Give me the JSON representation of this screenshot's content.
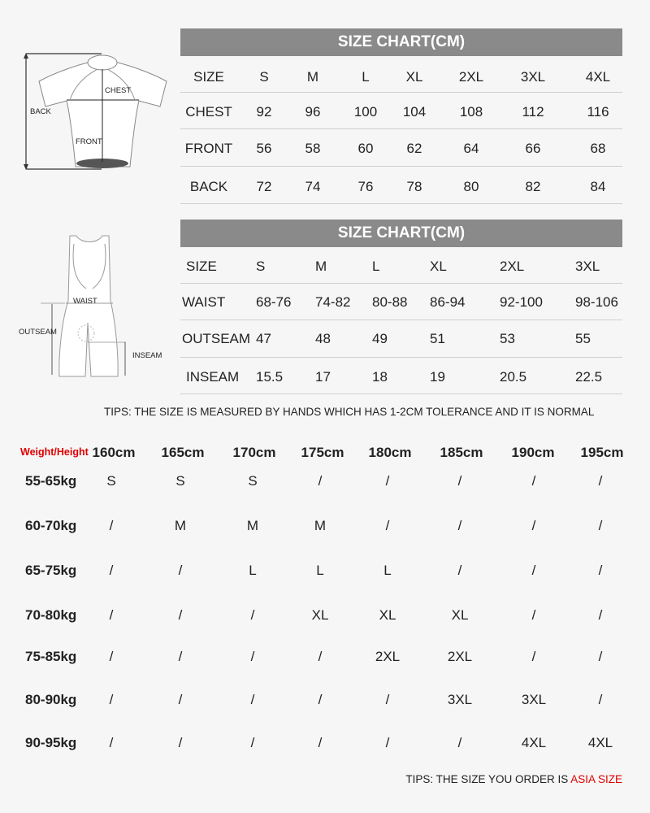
{
  "jersey_diagram": {
    "back": "BACK",
    "chest": "CHEST",
    "front": "FRONT"
  },
  "bib_diagram": {
    "waist": "WAIST",
    "outseam": "OUTSEAM",
    "inseam": "INSEAM"
  },
  "jersey_table": {
    "title": "SIZE CHART(CM)",
    "rows": [
      [
        "SIZE",
        "S",
        "M",
        "L",
        "XL",
        "2XL",
        "3XL",
        "4XL"
      ],
      [
        "CHEST",
        "92",
        "96",
        "100",
        "104",
        "108",
        "112",
        "116"
      ],
      [
        "FRONT",
        "56",
        "58",
        "60",
        "62",
        "64",
        "66",
        "68"
      ],
      [
        "BACK",
        "72",
        "74",
        "76",
        "78",
        "80",
        "82",
        "84"
      ]
    ]
  },
  "bib_table": {
    "title": "SIZE CHART(CM)",
    "rows": [
      [
        "SIZE",
        "S",
        "M",
        "L",
        "XL",
        "2XL",
        "3XL"
      ],
      [
        "WAIST",
        "68-76",
        "74-82",
        "80-88",
        "86-94",
        "92-100",
        "98-106"
      ],
      [
        "OUTSEAM",
        "47",
        "48",
        "49",
        "51",
        "53",
        "55"
      ],
      [
        "INSEAM",
        "15.5",
        "17",
        "18",
        "19",
        "20.5",
        "22.5"
      ]
    ]
  },
  "tips_tolerance": "TIPS: THE SIZE IS MEASURED BY HANDS WHICH HAS 1-2CM TOLERANCE AND IT IS NORMAL",
  "fit_table": {
    "corner_label": "Weight/Height",
    "heights": [
      "160cm",
      "165cm",
      "170cm",
      "175cm",
      "180cm",
      "185cm",
      "190cm",
      "195cm"
    ],
    "rows": [
      {
        "weight": "55-65kg",
        "sizes": [
          "S",
          "S",
          "S",
          "/",
          "/",
          "/",
          "/",
          "/"
        ]
      },
      {
        "weight": "60-70kg",
        "sizes": [
          "/",
          "M",
          "M",
          "M",
          "/",
          "/",
          "/",
          "/"
        ]
      },
      {
        "weight": "65-75kg",
        "sizes": [
          "/",
          "/",
          "L",
          "L",
          "L",
          "/",
          "/",
          "/"
        ]
      },
      {
        "weight": "70-80kg",
        "sizes": [
          "/",
          "/",
          "/",
          "XL",
          "XL",
          "XL",
          "/",
          "/"
        ]
      },
      {
        "weight": "75-85kg",
        "sizes": [
          "/",
          "/",
          "/",
          "/",
          "2XL",
          "2XL",
          "/",
          "/"
        ]
      },
      {
        "weight": "80-90kg",
        "sizes": [
          "/",
          "/",
          "/",
          "/",
          "/",
          "3XL",
          "3XL",
          "/"
        ]
      },
      {
        "weight": "90-95kg",
        "sizes": [
          "/",
          "/",
          "/",
          "/",
          "/",
          "/",
          "4XL",
          "4XL"
        ]
      }
    ]
  },
  "tips_asia": {
    "prefix": "TIPS: THE SIZE YOU ORDER IS ",
    "highlight": "ASIA SIZE"
  },
  "colors": {
    "header_bg": "#8b8a8a",
    "accent_red": "#e00000"
  }
}
